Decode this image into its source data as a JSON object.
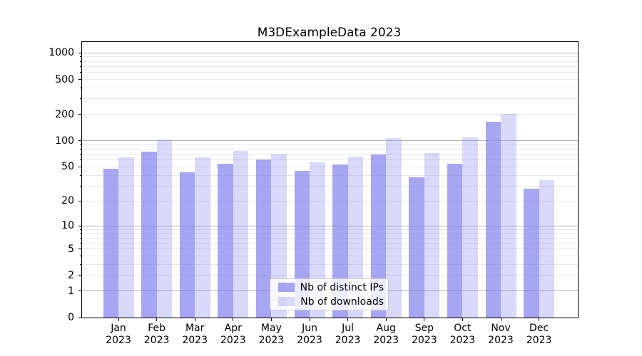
{
  "chart_data": {
    "type": "bar",
    "title": "M3DExampleData 2023",
    "categories": [
      "Jan",
      "Feb",
      "Mar",
      "Apr",
      "May",
      "Jun",
      "Jul",
      "Aug",
      "Sep",
      "Oct",
      "Nov",
      "Dec"
    ],
    "year": "2023",
    "series": [
      {
        "name": "Nb of distinct IPs",
        "color": "rgba(128,128,238,0.7)",
        "values": [
          48,
          75,
          43,
          54,
          61,
          45,
          53,
          70,
          38,
          54,
          165,
          28
        ]
      },
      {
        "name": "Nb of downloads",
        "color": "rgba(128,128,238,0.3)",
        "values": [
          64,
          104,
          65,
          76,
          71,
          57,
          66,
          108,
          72,
          110,
          202,
          35
        ]
      }
    ],
    "xlabel": "",
    "ylabel": "",
    "yscale": "log1p",
    "ylim": [
      0,
      1330
    ],
    "ytick_values": [
      0,
      1,
      2,
      5,
      10,
      20,
      50,
      100,
      200,
      500,
      1000
    ],
    "ytick_labels": [
      "0",
      "1",
      "2",
      "5",
      "10",
      "20",
      "50",
      "100",
      "200",
      "500",
      "1000"
    ],
    "major_grid_values": [
      1,
      10,
      100,
      1000
    ],
    "grid": true,
    "legend_position": "lower center",
    "colors": {
      "major_grid": "#b0b0b0",
      "minor_grid": "#e7e7e7",
      "spine": "#000000",
      "text": "#000000"
    }
  }
}
